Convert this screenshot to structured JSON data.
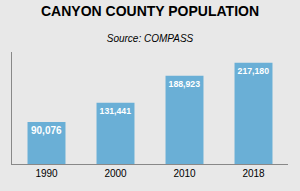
{
  "chart_data": {
    "type": "bar",
    "title": "CANYON COUNTY POPULATION",
    "subtitle": "Source: COMPASS",
    "categories": [
      "1990",
      "2000",
      "2010",
      "2018"
    ],
    "values": [
      90076,
      131441,
      188923,
      217180
    ],
    "value_labels": [
      "90,076",
      "131,441",
      "188,923",
      "217,180"
    ],
    "data_labels": true,
    "color": "#6aafd6",
    "ylim": [
      0,
      240000
    ],
    "grid": false,
    "tick_labels": "x"
  }
}
